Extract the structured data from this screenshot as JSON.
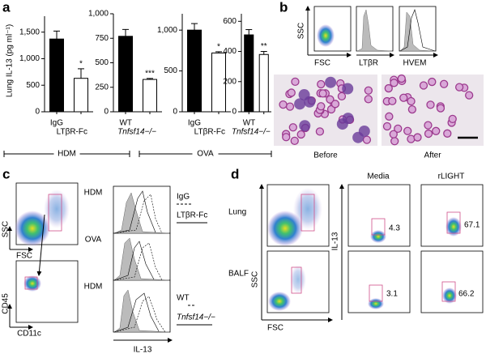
{
  "chart_data": [
    {
      "type": "bar",
      "y_label": "Lung IL-13 (pg ml⁻¹)",
      "categories": [
        "IgG",
        "LTβR-Fc"
      ],
      "values": [
        1370,
        630
      ],
      "errors": [
        150,
        180
      ],
      "colors": [
        "#000000",
        "#ffffff"
      ],
      "annotations": [
        "*"
      ],
      "ylim": [
        0,
        1800
      ],
      "yticks": [
        0,
        500,
        {
          "value": 1000,
          "label": "1,000"
        },
        {
          "value": 1500,
          "label": "1,500"
        }
      ]
    },
    {
      "type": "bar",
      "categories": [
        "WT",
        "Tnfsf14−/−"
      ],
      "values": [
        770,
        330
      ],
      "errors": [
        70,
        10
      ],
      "colors": [
        "#000000",
        "#ffffff"
      ],
      "annotations": [
        "***"
      ],
      "ylim": [
        0,
        1000
      ],
      "yticks": [
        0,
        250,
        500,
        750,
        {
          "value": 1000,
          "label": "1,000"
        }
      ]
    },
    {
      "type": "bar",
      "categories": [
        "IgG",
        "LTβR-Fc"
      ],
      "values": [
        1000,
        720
      ],
      "errors": [
        80,
        15
      ],
      "colors": [
        "#000000",
        "#ffffff"
      ],
      "annotations": [
        "*"
      ],
      "ylim": [
        0,
        1200
      ],
      "yticks": [
        0,
        500,
        {
          "value": 1000,
          "label": "1,000"
        }
      ]
    },
    {
      "type": "bar",
      "categories": [
        "WT",
        "Tnfsf14−/−"
      ],
      "values": [
        510,
        380
      ],
      "errors": [
        35,
        20
      ],
      "colors": [
        "#000000",
        "#ffffff"
      ],
      "annotations": [
        "**"
      ],
      "ylim": [
        0,
        650
      ],
      "yticks": [
        0,
        200,
        400,
        600
      ]
    }
  ],
  "groups": [
    "HDM",
    "OVA"
  ],
  "panels": {
    "a": "a",
    "b": "b",
    "c": "c",
    "d": "d",
    "b_axes": [
      "SSC",
      "FSC",
      "LTβR",
      "HVEM"
    ],
    "b_images": [
      "Before",
      "After"
    ],
    "c_axes": [
      "SSC",
      "FSC",
      "CD45",
      "CD11c",
      "IL-13"
    ],
    "c_rows": [
      "HDM",
      "OVA",
      "HDM"
    ],
    "c_legend": [
      "IgG",
      "LTβR-Fc",
      "WT",
      "Tnfsf14−/−"
    ],
    "d_rows": [
      "Lung",
      "BALF"
    ],
    "d_cols": [
      "Media",
      "rLIGHT"
    ],
    "d_axes": [
      "SSC",
      "FSC",
      "IL-13"
    ],
    "d_gates": [
      4.3,
      67.1,
      3.1,
      66.2
    ]
  }
}
